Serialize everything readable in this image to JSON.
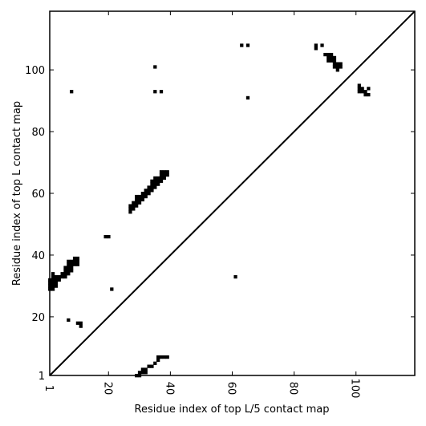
{
  "chart_data": {
    "type": "heatmap",
    "title": "",
    "xlabel": "Residue index of top L/5 contact map",
    "ylabel": "Residue index of top L contact map",
    "xlim": [
      1,
      119
    ],
    "ylim": [
      1,
      119
    ],
    "x_ticks": [
      1,
      20,
      40,
      60,
      80,
      100
    ],
    "y_ticks": [
      1,
      20,
      40,
      60,
      80,
      100
    ],
    "x_tick_labels_rotated": true,
    "grid": false,
    "diagonal_line": true,
    "colors": {
      "contact": "#000000",
      "background": "#ffffff",
      "line": "#000000"
    },
    "contacts": [
      [
        1,
        29
      ],
      [
        1,
        30
      ],
      [
        1,
        31
      ],
      [
        1,
        32
      ],
      [
        2,
        29
      ],
      [
        2,
        30
      ],
      [
        2,
        31
      ],
      [
        2,
        32
      ],
      [
        2,
        33
      ],
      [
        2,
        34
      ],
      [
        3,
        30
      ],
      [
        3,
        31
      ],
      [
        3,
        32
      ],
      [
        3,
        33
      ],
      [
        4,
        32
      ],
      [
        4,
        33
      ],
      [
        5,
        33
      ],
      [
        5,
        34
      ],
      [
        6,
        33
      ],
      [
        6,
        34
      ],
      [
        6,
        35
      ],
      [
        6,
        36
      ],
      [
        7,
        34
      ],
      [
        7,
        35
      ],
      [
        7,
        36
      ],
      [
        7,
        37
      ],
      [
        7,
        38
      ],
      [
        8,
        35
      ],
      [
        8,
        36
      ],
      [
        8,
        37
      ],
      [
        8,
        38
      ],
      [
        9,
        37
      ],
      [
        9,
        38
      ],
      [
        9,
        39
      ],
      [
        10,
        37
      ],
      [
        10,
        38
      ],
      [
        10,
        39
      ],
      [
        7,
        19
      ],
      [
        10,
        18
      ],
      [
        11,
        17
      ],
      [
        11,
        18
      ],
      [
        8,
        93
      ],
      [
        19,
        46
      ],
      [
        20,
        46
      ],
      [
        21,
        29
      ],
      [
        27,
        54
      ],
      [
        27,
        55
      ],
      [
        27,
        56
      ],
      [
        28,
        55
      ],
      [
        28,
        56
      ],
      [
        28,
        57
      ],
      [
        29,
        56
      ],
      [
        29,
        57
      ],
      [
        29,
        58
      ],
      [
        29,
        59
      ],
      [
        30,
        57
      ],
      [
        30,
        58
      ],
      [
        30,
        59
      ],
      [
        31,
        58
      ],
      [
        31,
        59
      ],
      [
        31,
        60
      ],
      [
        32,
        59
      ],
      [
        32,
        60
      ],
      [
        32,
        61
      ],
      [
        33,
        60
      ],
      [
        33,
        61
      ],
      [
        33,
        62
      ],
      [
        34,
        61
      ],
      [
        34,
        62
      ],
      [
        34,
        63
      ],
      [
        34,
        64
      ],
      [
        35,
        62
      ],
      [
        35,
        63
      ],
      [
        35,
        64
      ],
      [
        35,
        65
      ],
      [
        36,
        63
      ],
      [
        36,
        64
      ],
      [
        36,
        65
      ],
      [
        37,
        64
      ],
      [
        37,
        65
      ],
      [
        37,
        66
      ],
      [
        37,
        67
      ],
      [
        38,
        65
      ],
      [
        38,
        66
      ],
      [
        38,
        67
      ],
      [
        39,
        66
      ],
      [
        39,
        67
      ],
      [
        29,
        1
      ],
      [
        30,
        1
      ],
      [
        30,
        2
      ],
      [
        31,
        2
      ],
      [
        31,
        3
      ],
      [
        32,
        2
      ],
      [
        32,
        3
      ],
      [
        33,
        4
      ],
      [
        34,
        4
      ],
      [
        35,
        5
      ],
      [
        36,
        6
      ],
      [
        36,
        7
      ],
      [
        37,
        7
      ],
      [
        38,
        7
      ],
      [
        39,
        7
      ],
      [
        35,
        93
      ],
      [
        35,
        101
      ],
      [
        37,
        93
      ],
      [
        61,
        33
      ],
      [
        63,
        108
      ],
      [
        65,
        91
      ],
      [
        65,
        108
      ],
      [
        87,
        107
      ],
      [
        87,
        108
      ],
      [
        89,
        108
      ],
      [
        90,
        105
      ],
      [
        91,
        103
      ],
      [
        91,
        104
      ],
      [
        91,
        105
      ],
      [
        92,
        103
      ],
      [
        92,
        104
      ],
      [
        92,
        105
      ],
      [
        93,
        101
      ],
      [
        93,
        102
      ],
      [
        93,
        103
      ],
      [
        93,
        104
      ],
      [
        94,
        100
      ],
      [
        94,
        101
      ],
      [
        94,
        102
      ],
      [
        95,
        101
      ],
      [
        95,
        102
      ],
      [
        101,
        93
      ],
      [
        101,
        94
      ],
      [
        101,
        95
      ],
      [
        102,
        93
      ],
      [
        102,
        94
      ],
      [
        103,
        92
      ],
      [
        103,
        93
      ],
      [
        104,
        92
      ],
      [
        104,
        94
      ]
    ]
  }
}
